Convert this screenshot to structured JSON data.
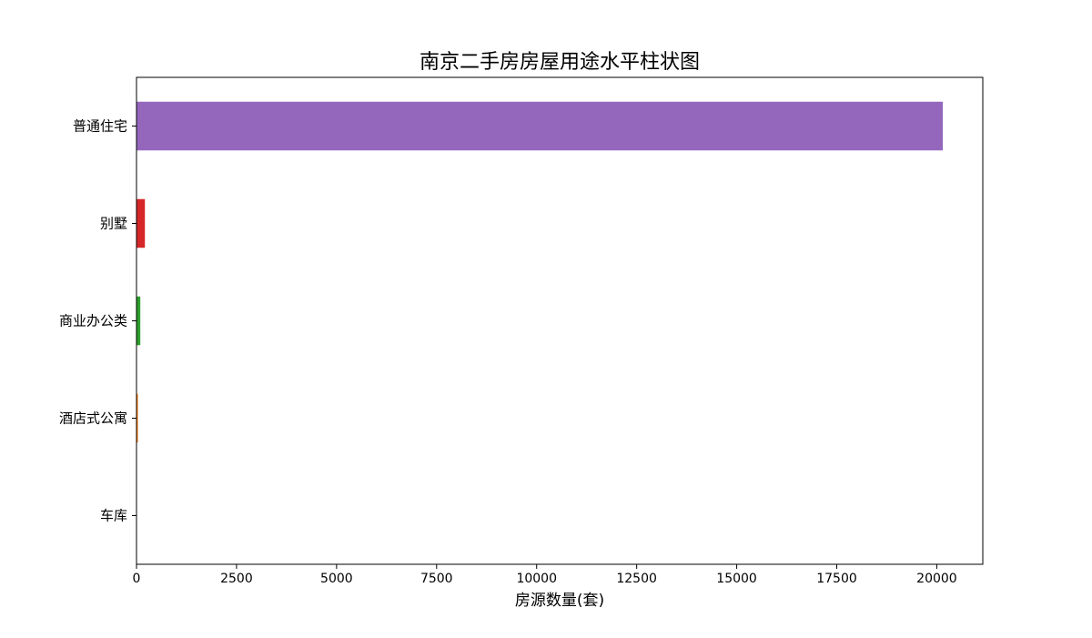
{
  "chart_data": {
    "type": "bar",
    "orientation": "horizontal",
    "title": "南京二手房房屋用途水平柱状图",
    "xlabel": "房源数量(套)",
    "ylabel": "",
    "categories": [
      "普通住宅",
      "别墅",
      "商业办公类",
      "酒店式公寓",
      "车库"
    ],
    "values": [
      20150,
      210,
      95,
      35,
      2
    ],
    "colors": [
      "#9467bd",
      "#d62728",
      "#2ca02c",
      "#ff7f0e",
      "#1f77b4"
    ],
    "xlim": [
      0,
      21150
    ],
    "xticks": [
      0,
      2500,
      5000,
      7500,
      10000,
      12500,
      15000,
      17500,
      20000
    ],
    "xtick_labels": [
      "0",
      "2500",
      "5000",
      "7500",
      "10000",
      "12500",
      "15000",
      "17500",
      "20000"
    ],
    "grid": false,
    "legend": "none"
  }
}
